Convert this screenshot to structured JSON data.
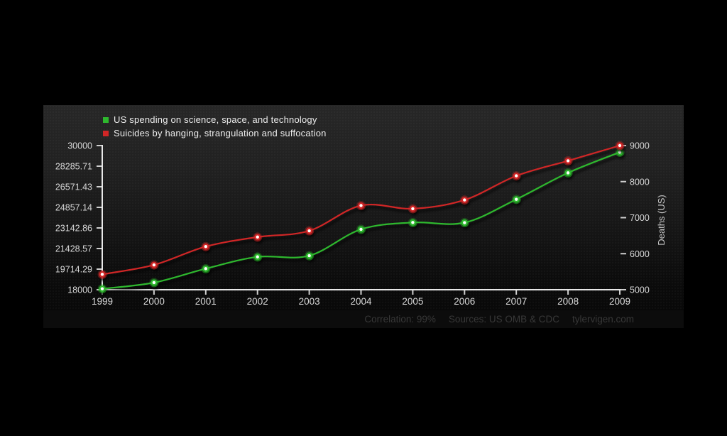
{
  "chart_data": {
    "type": "line",
    "title": "",
    "x": [
      1999,
      2000,
      2001,
      2002,
      2003,
      2004,
      2005,
      2006,
      2007,
      2008,
      2009
    ],
    "x_tick_labels": [
      "1999",
      "2000",
      "2001",
      "2002",
      "2003",
      "2004",
      "2005",
      "2006",
      "2007",
      "2008",
      "2009"
    ],
    "series": [
      {
        "name": "US spending on science, space, and technology",
        "axis": "left",
        "color": "#2eb82e",
        "values": [
          18079,
          18594,
          19753,
          20734,
          20831,
          23029,
          23597,
          23584,
          25525,
          27731,
          29449
        ]
      },
      {
        "name": "Suicides by hanging, strangulation and suffocation",
        "axis": "right",
        "color": "#d02626",
        "values": [
          5427,
          5688,
          6198,
          6462,
          6635,
          7336,
          7248,
          7491,
          8161,
          8578,
          9000
        ]
      }
    ],
    "left_axis": {
      "min": 18000,
      "max": 30000,
      "tick_values": [
        30000,
        28285.71,
        26571.43,
        24857.14,
        23142.86,
        21428.57,
        19714.29,
        18000
      ],
      "tick_labels": [
        "30000",
        "28285.71",
        "26571.43",
        "24857.14",
        "23142.86",
        "21428.57",
        "19714.29",
        "18000"
      ]
    },
    "right_axis": {
      "min": 5000,
      "max": 9000,
      "label": "Deaths (US)",
      "tick_values": [
        9000,
        8000,
        7000,
        6000,
        5000
      ],
      "tick_labels": [
        "9000",
        "8000",
        "7000",
        "6000",
        "5000"
      ]
    },
    "legend_position": "top-left",
    "grid": false
  },
  "footer": {
    "correlation": "Correlation: 99%",
    "sources": "Sources: US OMB & CDC",
    "site": "tylervigen.com"
  },
  "colors": {
    "background": "#000000",
    "panel_top": "#272727",
    "panel_bottom": "#070707",
    "axis_line": "#e8e8e8",
    "tick_mark": "#cfcfcf",
    "tick_label": "#d8d8d8",
    "legend_text": "#ededed",
    "footer_bg": "#0c0c0c",
    "footer_text": "#383838",
    "marker_center": "#ffffff"
  }
}
